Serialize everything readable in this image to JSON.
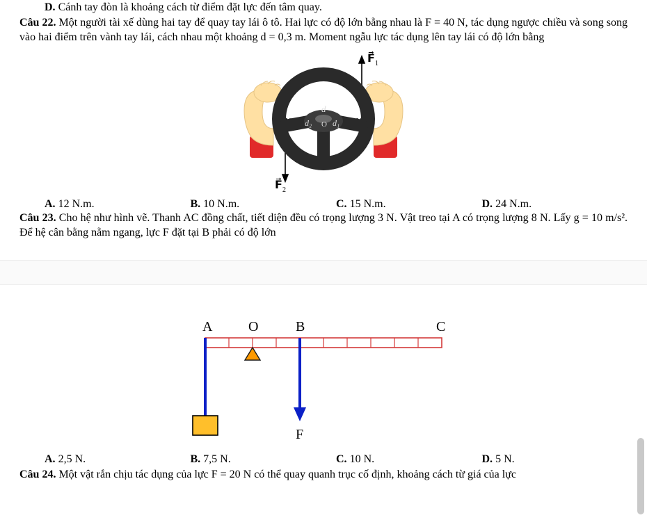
{
  "cutoff_top": "D. Cánh tay đòn là khoảng cách từ điểm đặt lực đến tâm quay.",
  "q22": {
    "label": "Câu 22.",
    "text": " Một người tài xế dùng hai tay để quay tay lái ô tô. Hai lực có độ lớn bằng nhau là F = 40 N, tác dụng ngược chiều và song song vào hai điểm trên vành tay lái, cách nhau một khoảng d = 0,3 m. Moment ngẫu lực tác dụng lên tay lái có độ lớn bằng",
    "options": {
      "A": "A. 12 N.m.",
      "B": "B. 10 N.m.",
      "C": "C. 15 N.m.",
      "D": "D. 24 N.m."
    },
    "fig": {
      "bg": "#ffffff",
      "wheel_outer": "#2a2a2a",
      "wheel_hub": "#4a4a4a",
      "hand_skin": "#ffe0a3",
      "hand_sleeve": "#e12a2a",
      "arrow_color": "#000000",
      "labels": {
        "F1": "F⃗₁",
        "F2": "F⃗₂",
        "d": "d",
        "d1": "d₁",
        "d2": "d₂",
        "O": "O"
      }
    }
  },
  "q23": {
    "label": "Câu 23.",
    "text_html": " Cho hệ như hình vẽ. Thanh AC đồng chất, tiết diện đều có trọng lượng 3 N. Vật treo tại A có trọng lượng 8 N. Lấy g = 10 m/s². Để hệ cân bằng nằm ngang, lực F đặt tại B phải có độ lớn",
    "options": {
      "A": "A. 2,5 N.",
      "B": "B. 7,5 N.",
      "C": "C. 10 N.",
      "D": "D. 5 N."
    },
    "fig": {
      "bar_fill": "#ffffff",
      "bar_stroke": "#d43a3a",
      "pivot_fill": "#ff9a00",
      "pivot_stroke": "#1b1b1b",
      "arrow_color": "#0b20c7",
      "rope_color": "#0b20c7",
      "weight_fill": "#ffbf2b",
      "label_color": "#000000",
      "labels": {
        "A": "A",
        "O": "O",
        "B": "B",
        "C": "C",
        "F": "F"
      },
      "segments": 10,
      "indices": {
        "A": 0,
        "O": 2,
        "B": 4,
        "C": 10
      }
    }
  },
  "cutoff_bottom": "Câu 24. Một vật rắn chịu tác dụng của lực F = 20 N có thể quay quanh trục cố định, khoảng cách từ giá của lực"
}
